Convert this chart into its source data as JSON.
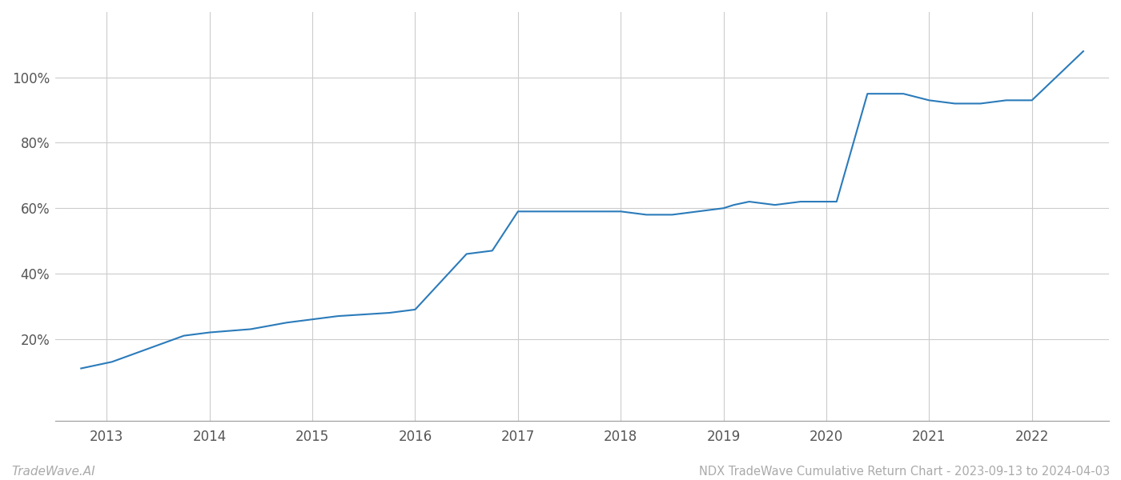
{
  "title": "NDX TradeWave Cumulative Return Chart - 2023-09-13 to 2024-04-03",
  "watermark": "TradeWave.AI",
  "x_years": [
    2013,
    2014,
    2015,
    2016,
    2017,
    2018,
    2019,
    2020,
    2021,
    2022
  ],
  "x_data": [
    2012.75,
    2013.05,
    2013.75,
    2014.0,
    2014.4,
    2014.75,
    2015.0,
    2015.25,
    2015.75,
    2016.0,
    2016.5,
    2016.75,
    2017.0,
    2017.25,
    2017.5,
    2017.75,
    2018.0,
    2018.25,
    2018.5,
    2018.75,
    2019.0,
    2019.1,
    2019.25,
    2019.5,
    2019.75,
    2020.1,
    2020.4,
    2020.75,
    2021.0,
    2021.25,
    2021.5,
    2021.75,
    2022.0,
    2022.5
  ],
  "y_data": [
    11,
    13,
    21,
    22,
    23,
    25,
    26,
    27,
    28,
    29,
    46,
    47,
    59,
    59,
    59,
    59,
    59,
    58,
    58,
    59,
    60,
    61,
    62,
    61,
    62,
    62,
    95,
    95,
    93,
    92,
    92,
    93,
    93,
    108
  ],
  "line_color": "#2b7bba",
  "line_width": 1.5,
  "ylim": [
    -5,
    120
  ],
  "yticks": [
    20,
    40,
    60,
    80,
    100
  ],
  "xlim_left": 2012.5,
  "xlim_right": 2022.75,
  "background_color": "#ffffff",
  "grid_color": "#cccccc",
  "axes_color": "#999999",
  "tick_label_color": "#555555",
  "footer_text_color": "#aaaaaa",
  "title_fontsize": 10.5,
  "watermark_fontsize": 11
}
